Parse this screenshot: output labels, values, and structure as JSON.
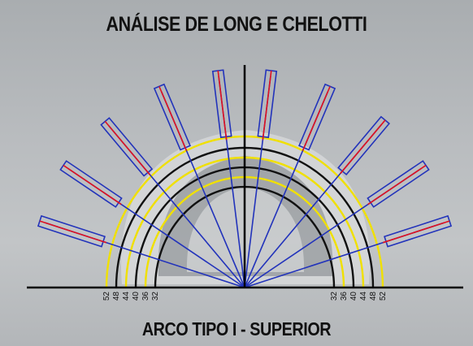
{
  "title": "ANÁLISE DE LONG E CHELOTTI",
  "subtitle": "ARCO TIPO I - SUPERIOR",
  "left_scale": [
    "52",
    "48",
    "44",
    "40",
    "36",
    "32"
  ],
  "right_scale": [
    "32",
    "36",
    "40",
    "44",
    "48",
    "52"
  ],
  "arcs": [
    {
      "value": "52",
      "color": "#f0e000"
    },
    {
      "value": "48",
      "color": "#111111"
    },
    {
      "value": "44",
      "color": "#f0e000"
    },
    {
      "value": "40",
      "color": "#111111"
    },
    {
      "value": "36",
      "color": "#f0e000"
    },
    {
      "value": "32",
      "color": "#111111"
    }
  ],
  "colors": {
    "ray": "#2233bb",
    "axis": "#000000",
    "tooth_box": "#2233bb",
    "tooth_center": "#e01020",
    "arc_yellow": "#f0e000",
    "arc_black": "#111111"
  },
  "teeth_count": 10
}
